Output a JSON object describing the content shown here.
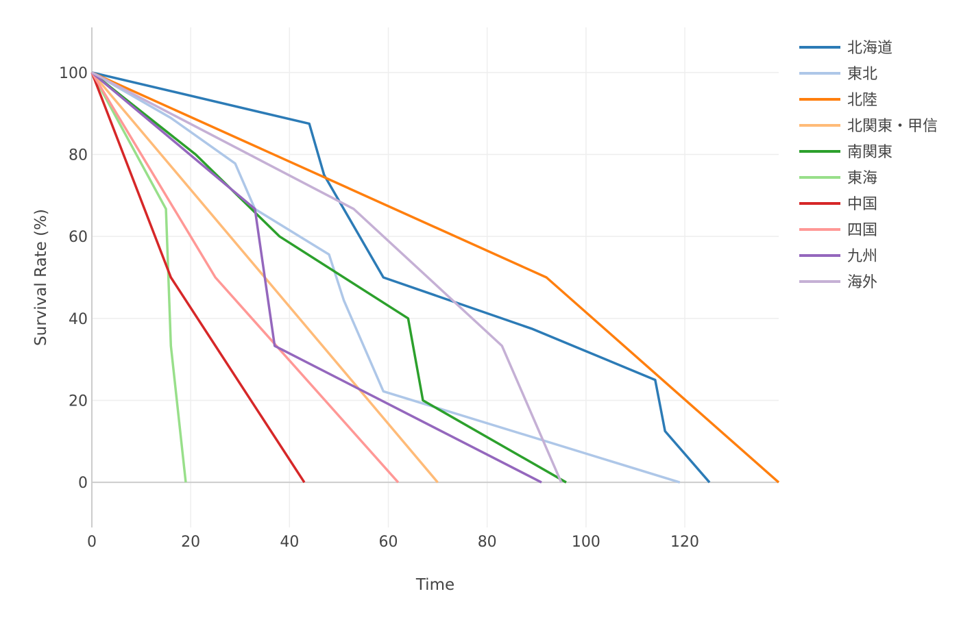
{
  "chart_data": {
    "type": "line",
    "title": "",
    "xlabel": "Time",
    "ylabel": "Survival Rate (%)",
    "xlim": [
      0,
      139
    ],
    "ylim": [
      -11,
      111
    ],
    "xticks": [
      0,
      20,
      40,
      60,
      80,
      100,
      120
    ],
    "yticks": [
      0,
      20,
      40,
      60,
      80,
      100
    ],
    "grid": true,
    "legend_position": "right",
    "series": [
      {
        "name": "北海道",
        "color": "#2c7bb6",
        "x": [
          0,
          44,
          47,
          59,
          89,
          114,
          116,
          125
        ],
        "y": [
          100,
          87.5,
          75,
          50,
          37.5,
          25,
          12.5,
          0
        ]
      },
      {
        "name": "東北",
        "color": "#aec7e8",
        "x": [
          0,
          16,
          29,
          33,
          48,
          51,
          59,
          119
        ],
        "y": [
          100,
          88.9,
          77.8,
          66.7,
          55.6,
          44.4,
          22.2,
          0
        ]
      },
      {
        "name": "北陸",
        "color": "#ff7f0e",
        "x": [
          0,
          92,
          139
        ],
        "y": [
          100,
          50,
          0
        ]
      },
      {
        "name": "北関東・甲信",
        "color": "#ffbb78",
        "x": [
          0,
          70
        ],
        "y": [
          100,
          0
        ]
      },
      {
        "name": "南関東",
        "color": "#2ca02c",
        "x": [
          0,
          21,
          38,
          64,
          67,
          96
        ],
        "y": [
          100,
          80,
          60,
          40,
          20,
          0
        ]
      },
      {
        "name": "東海",
        "color": "#98df8a",
        "x": [
          0,
          15,
          16,
          19
        ],
        "y": [
          100,
          66.7,
          33.3,
          0
        ]
      },
      {
        "name": "中国",
        "color": "#d62728",
        "x": [
          0,
          16,
          43
        ],
        "y": [
          100,
          50,
          0
        ]
      },
      {
        "name": "四国",
        "color": "#ff9896",
        "x": [
          0,
          25,
          62
        ],
        "y": [
          100,
          50,
          0
        ]
      },
      {
        "name": "九州",
        "color": "#9467bd",
        "x": [
          0,
          33,
          37,
          91
        ],
        "y": [
          100,
          66.7,
          33.3,
          0
        ]
      },
      {
        "name": "海外",
        "color": "#c5b0d5",
        "x": [
          0,
          53,
          83,
          95
        ],
        "y": [
          100,
          66.7,
          33.3,
          0
        ]
      }
    ]
  }
}
